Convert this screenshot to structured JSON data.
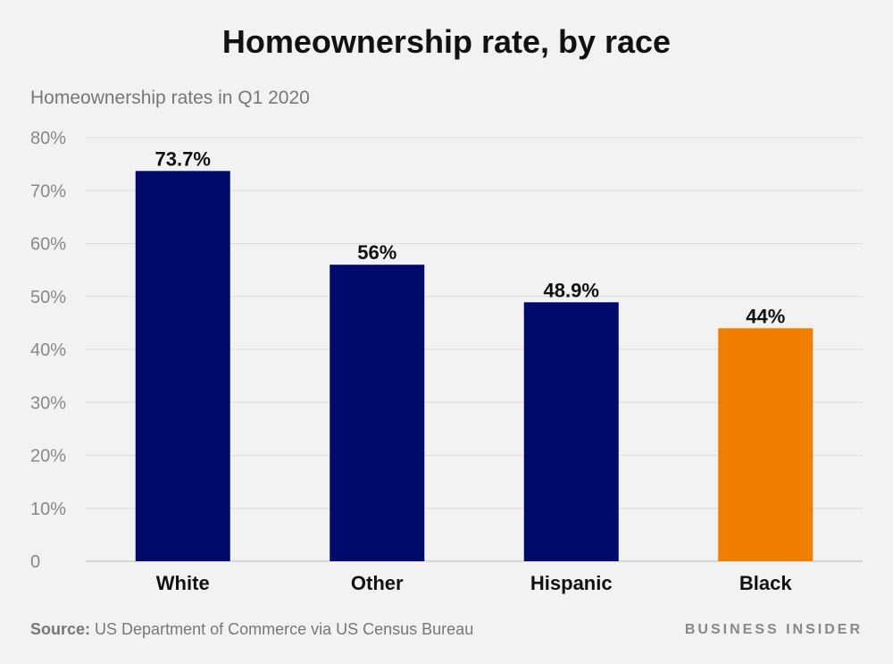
{
  "title": "Homeownership rate, by race",
  "subtitle": "Homeownership rates in Q1 2020",
  "footer": {
    "source_label": "Source:",
    "source_text": " US Department of Commerce via US Census Bureau",
    "brand": "BUSINESS INSIDER"
  },
  "colors": {
    "bar_default": "#000a6b",
    "bar_highlight": "#f07f00",
    "grid": "#dddddd",
    "tick_text": "#888888",
    "label_text": "#111111"
  },
  "chart_data": {
    "type": "bar",
    "categories": [
      "White",
      "Other",
      "Hispanic",
      "Black"
    ],
    "values": [
      73.7,
      56,
      48.9,
      44
    ],
    "value_labels": [
      "73.7%",
      "56%",
      "48.9%",
      "44%"
    ],
    "highlight": "Black",
    "ylim": [
      0,
      80
    ],
    "yticks": [
      0,
      10,
      20,
      30,
      40,
      50,
      60,
      70,
      80
    ],
    "ytick_labels": [
      "0",
      "10%",
      "20%",
      "30%",
      "40%",
      "50%",
      "60%",
      "70%",
      "80%"
    ],
    "grid": true
  }
}
